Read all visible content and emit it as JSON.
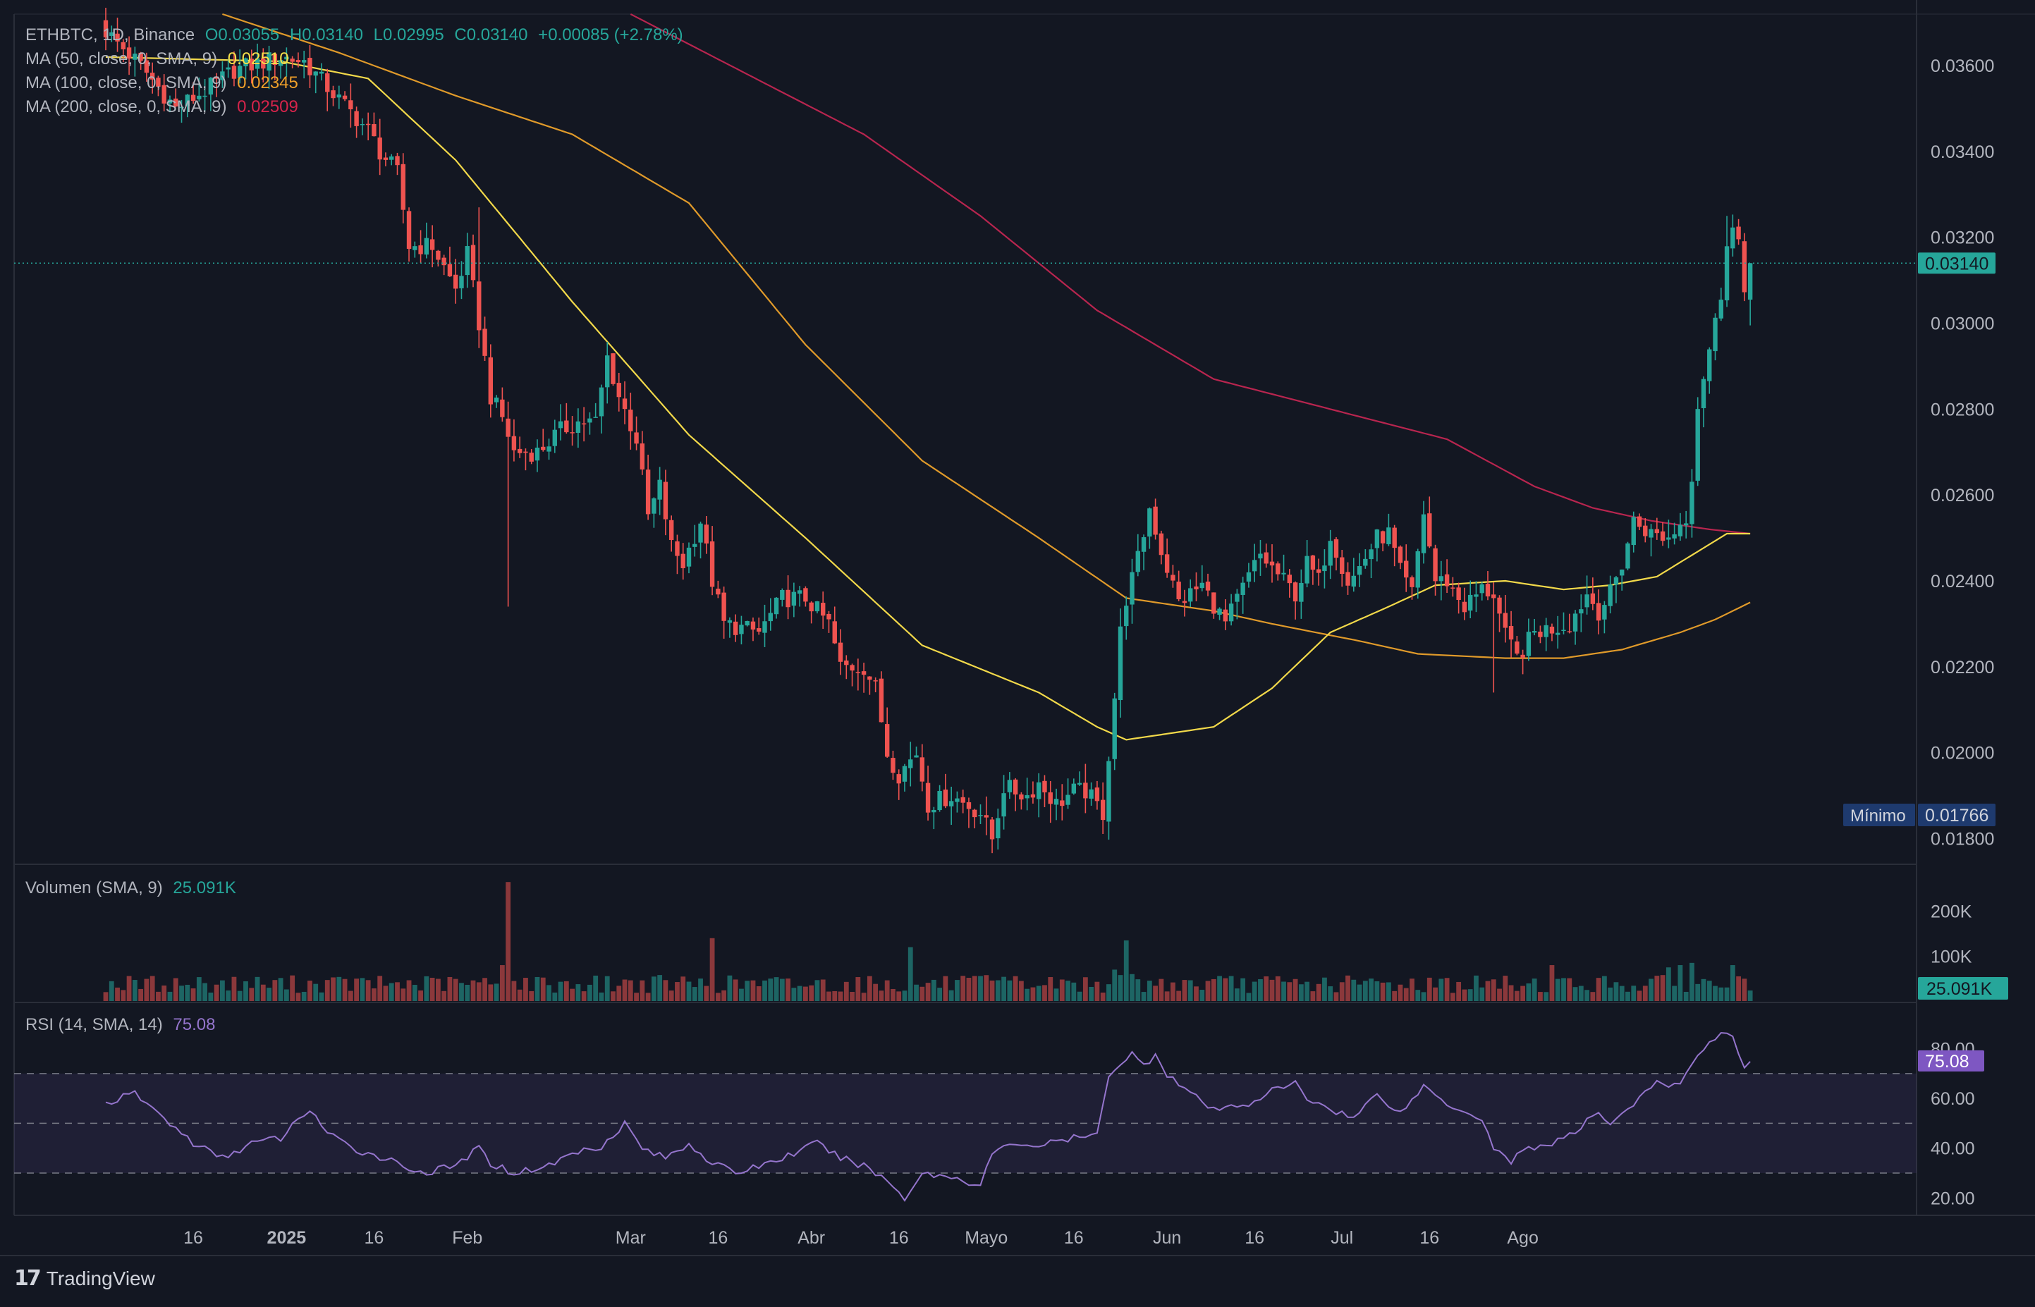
{
  "header": {
    "symbol": "ETHBTC, 1D, Binance",
    "ohlc": {
      "open": "O0.03055",
      "high": "H0.03140",
      "low": "L0.02995",
      "close": "C0.03140",
      "change": "+0.00085 (+2.78%)"
    }
  },
  "indicators": {
    "ma50": {
      "label": "MA (50, close, 0, SMA, 9)",
      "value": "0.02510",
      "color": "#f5e04a"
    },
    "ma100": {
      "label": "MA (100, close, 0, SMA, 9)",
      "value": "0.02345",
      "color": "#f0a02a"
    },
    "ma200": {
      "label": "MA (200, close, 0, SMA, 9)",
      "value": "0.02509",
      "color": "#d6244b"
    },
    "volume": {
      "label": "Volumen (SMA, 9)",
      "value": "25.091K"
    },
    "rsi": {
      "label": "RSI (14, SMA, 14)",
      "value": "75.08",
      "color": "#7e57c2"
    }
  },
  "price_axis": {
    "ticks": [
      "0.03600",
      "0.03400",
      "0.03200",
      "0.03000",
      "0.02800",
      "0.02600",
      "0.02400",
      "0.02200",
      "0.02000",
      "0.01800"
    ],
    "last_price": "0.03140",
    "min_label": "Mínimo",
    "min_value": "0.01766"
  },
  "volume_axis": {
    "ticks": [
      "200K",
      "100K"
    ],
    "last": "25.091K"
  },
  "rsi_axis": {
    "ticks": [
      "80.00",
      "60.00",
      "40.00",
      "20.00"
    ],
    "last": "75.08"
  },
  "time_axis": {
    "labels": [
      {
        "text": "16",
        "day": 15,
        "bold": false
      },
      {
        "text": "2025",
        "day": 31,
        "bold": true
      },
      {
        "text": "16",
        "day": 46,
        "bold": false
      },
      {
        "text": "Feb",
        "day": 62,
        "bold": false
      },
      {
        "text": "Mar",
        "day": 90,
        "bold": false
      },
      {
        "text": "16",
        "day": 105,
        "bold": false
      },
      {
        "text": "Abr",
        "day": 121,
        "bold": false
      },
      {
        "text": "16",
        "day": 136,
        "bold": false
      },
      {
        "text": "Mayo",
        "day": 151,
        "bold": false
      },
      {
        "text": "16",
        "day": 166,
        "bold": false
      },
      {
        "text": "Jun",
        "day": 182,
        "bold": false
      },
      {
        "text": "16",
        "day": 197,
        "bold": false
      },
      {
        "text": "Jul",
        "day": 212,
        "bold": false
      },
      {
        "text": "16",
        "day": 227,
        "bold": false
      },
      {
        "text": "Ago",
        "day": 243,
        "bold": false
      }
    ]
  },
  "brand": {
    "name": "TradingView",
    "logo_icon": "tradingview-logo-icon"
  },
  "colors": {
    "up": "#26a69a",
    "down": "#ef5350",
    "background": "#131722"
  },
  "chart_data": {
    "type": "candlestick",
    "symbol": "ETHBTC",
    "interval": "1D",
    "start_date": "2024-12-01",
    "ylim": [
      0.0174,
      0.0372
    ],
    "close_anchors": [
      [
        0,
        0.0368
      ],
      [
        6,
        0.036
      ],
      [
        12,
        0.035
      ],
      [
        18,
        0.0355
      ],
      [
        22,
        0.0359
      ],
      [
        30,
        0.0362
      ],
      [
        34,
        0.0361
      ],
      [
        40,
        0.0352
      ],
      [
        45,
        0.0345
      ],
      [
        47,
        0.034
      ],
      [
        50,
        0.0335
      ],
      [
        52,
        0.0318
      ],
      [
        56,
        0.0318
      ],
      [
        60,
        0.0308
      ],
      [
        62,
        0.0316
      ],
      [
        64,
        0.03
      ],
      [
        66,
        0.0283
      ],
      [
        68,
        0.0278
      ],
      [
        70,
        0.027
      ],
      [
        74,
        0.027
      ],
      [
        78,
        0.0275
      ],
      [
        81,
        0.0277
      ],
      [
        84,
        0.0277
      ],
      [
        86,
        0.0292
      ],
      [
        88,
        0.0283
      ],
      [
        91,
        0.0273
      ],
      [
        93,
        0.0255
      ],
      [
        95,
        0.0262
      ],
      [
        97,
        0.0248
      ],
      [
        99,
        0.0244
      ],
      [
        102,
        0.0254
      ],
      [
        104,
        0.024
      ],
      [
        106,
        0.023
      ],
      [
        112,
        0.0228
      ],
      [
        116,
        0.0236
      ],
      [
        120,
        0.0236
      ],
      [
        124,
        0.023
      ],
      [
        126,
        0.022
      ],
      [
        130,
        0.022
      ],
      [
        132,
        0.0215
      ],
      [
        134,
        0.02
      ],
      [
        136,
        0.0195
      ],
      [
        139,
        0.02
      ],
      [
        141,
        0.0188
      ],
      [
        145,
        0.019
      ],
      [
        150,
        0.0186
      ],
      [
        152,
        0.018
      ],
      [
        154,
        0.0192
      ],
      [
        158,
        0.019
      ],
      [
        160,
        0.0193
      ],
      [
        163,
        0.0188
      ],
      [
        166,
        0.0191
      ],
      [
        168,
        0.0191
      ],
      [
        171,
        0.0186
      ],
      [
        173,
        0.0213
      ],
      [
        174,
        0.0228
      ],
      [
        175,
        0.0236
      ],
      [
        177,
        0.0245
      ],
      [
        179,
        0.0257
      ],
      [
        181,
        0.0247
      ],
      [
        184,
        0.0235
      ],
      [
        188,
        0.0239
      ],
      [
        192,
        0.023
      ],
      [
        196,
        0.0241
      ],
      [
        198,
        0.0246
      ],
      [
        202,
        0.024
      ],
      [
        204,
        0.0237
      ],
      [
        206,
        0.0244
      ],
      [
        208,
        0.024
      ],
      [
        210,
        0.0251
      ],
      [
        213,
        0.024
      ],
      [
        214,
        0.0241
      ],
      [
        218,
        0.025
      ],
      [
        220,
        0.0251
      ],
      [
        222,
        0.0242
      ],
      [
        224,
        0.0237
      ],
      [
        226,
        0.0256
      ],
      [
        228,
        0.024
      ],
      [
        230,
        0.024
      ],
      [
        233,
        0.0234
      ],
      [
        236,
        0.0238
      ],
      [
        238,
        0.0237
      ],
      [
        240,
        0.0227
      ],
      [
        242,
        0.0222
      ],
      [
        245,
        0.0228
      ],
      [
        248,
        0.0229
      ],
      [
        251,
        0.023
      ],
      [
        254,
        0.0237
      ],
      [
        256,
        0.0233
      ],
      [
        258,
        0.0237
      ],
      [
        260,
        0.0244
      ],
      [
        262,
        0.0254
      ],
      [
        265,
        0.0251
      ],
      [
        268,
        0.025
      ],
      [
        271,
        0.0255
      ],
      [
        272,
        0.0265
      ],
      [
        273,
        0.0281
      ],
      [
        274,
        0.0288
      ],
      [
        275,
        0.0294
      ],
      [
        276,
        0.03
      ],
      [
        277,
        0.0307
      ],
      [
        278,
        0.032
      ],
      [
        279,
        0.0322
      ],
      [
        280,
        0.0319
      ],
      [
        281,
        0.0305
      ],
      [
        282,
        0.0314
      ]
    ],
    "ma50_anchors": [
      [
        0,
        0.0362
      ],
      [
        30,
        0.0361
      ],
      [
        45,
        0.0357
      ],
      [
        60,
        0.0338
      ],
      [
        80,
        0.0305
      ],
      [
        100,
        0.0274
      ],
      [
        120,
        0.025
      ],
      [
        140,
        0.0225
      ],
      [
        160,
        0.0214
      ],
      [
        170,
        0.0206
      ],
      [
        175,
        0.0203
      ],
      [
        190,
        0.0206
      ],
      [
        200,
        0.0215
      ],
      [
        210,
        0.0228
      ],
      [
        220,
        0.0234
      ],
      [
        228,
        0.0239
      ],
      [
        240,
        0.024
      ],
      [
        250,
        0.0238
      ],
      [
        258,
        0.0239
      ],
      [
        266,
        0.0241
      ],
      [
        272,
        0.0246
      ],
      [
        278,
        0.0251
      ],
      [
        282,
        0.0251
      ]
    ],
    "ma100_anchors": [
      [
        20,
        0.0372
      ],
      [
        40,
        0.0363
      ],
      [
        60,
        0.0353
      ],
      [
        80,
        0.0344
      ],
      [
        100,
        0.0328
      ],
      [
        120,
        0.0295
      ],
      [
        140,
        0.0268
      ],
      [
        160,
        0.025
      ],
      [
        175,
        0.0236
      ],
      [
        190,
        0.0233
      ],
      [
        200,
        0.023
      ],
      [
        215,
        0.0226
      ],
      [
        225,
        0.0223
      ],
      [
        240,
        0.0222
      ],
      [
        250,
        0.0222
      ],
      [
        260,
        0.0224
      ],
      [
        270,
        0.0228
      ],
      [
        276,
        0.0231
      ],
      [
        282,
        0.0235
      ]
    ],
    "ma200_anchors": [
      [
        90,
        0.0372
      ],
      [
        110,
        0.0358
      ],
      [
        130,
        0.0344
      ],
      [
        150,
        0.0325
      ],
      [
        170,
        0.0303
      ],
      [
        190,
        0.0287
      ],
      [
        210,
        0.028
      ],
      [
        230,
        0.0273
      ],
      [
        245,
        0.0262
      ],
      [
        255,
        0.0257
      ],
      [
        265,
        0.0254
      ],
      [
        275,
        0.0252
      ],
      [
        282,
        0.0251
      ]
    ],
    "volume": {
      "unit": "K",
      "ylim": [
        0,
        270
      ],
      "spike_days": {
        "69": 265,
        "68": 80,
        "138": 120,
        "175": 135,
        "104": 140,
        "176": 60,
        "173": 70,
        "248": 80,
        "268": 75,
        "270": 80,
        "272": 85,
        "279": 80
      }
    },
    "rsi": {
      "ylim": [
        13,
        98
      ],
      "bands": [
        30,
        50,
        70
      ],
      "anchors": [
        [
          0,
          58
        ],
        [
          5,
          62
        ],
        [
          10,
          52
        ],
        [
          15,
          42
        ],
        [
          20,
          36
        ],
        [
          25,
          42
        ],
        [
          30,
          44
        ],
        [
          35,
          56
        ],
        [
          38,
          46
        ],
        [
          42,
          40
        ],
        [
          48,
          36
        ],
        [
          52,
          32
        ],
        [
          55,
          30
        ],
        [
          60,
          33
        ],
        [
          64,
          40
        ],
        [
          66,
          34
        ],
        [
          70,
          30
        ],
        [
          76,
          33
        ],
        [
          80,
          38
        ],
        [
          85,
          41
        ],
        [
          89,
          50
        ],
        [
          92,
          40
        ],
        [
          96,
          36
        ],
        [
          100,
          42
        ],
        [
          104,
          34
        ],
        [
          108,
          30
        ],
        [
          112,
          33
        ],
        [
          116,
          36
        ],
        [
          122,
          42
        ],
        [
          126,
          36
        ],
        [
          130,
          33
        ],
        [
          134,
          27
        ],
        [
          137,
          20
        ],
        [
          140,
          30
        ],
        [
          146,
          28
        ],
        [
          150,
          25
        ],
        [
          152,
          38
        ],
        [
          156,
          42
        ],
        [
          160,
          41
        ],
        [
          166,
          44
        ],
        [
          170,
          45
        ],
        [
          172,
          70
        ],
        [
          176,
          78
        ],
        [
          178,
          73
        ],
        [
          180,
          78
        ],
        [
          182,
          70
        ],
        [
          186,
          62
        ],
        [
          190,
          55
        ],
        [
          196,
          58
        ],
        [
          200,
          63
        ],
        [
          204,
          66
        ],
        [
          206,
          60
        ],
        [
          210,
          56
        ],
        [
          214,
          52
        ],
        [
          218,
          62
        ],
        [
          222,
          54
        ],
        [
          226,
          65
        ],
        [
          230,
          58
        ],
        [
          233,
          55
        ],
        [
          236,
          52
        ],
        [
          238,
          40
        ],
        [
          241,
          35
        ],
        [
          244,
          40
        ],
        [
          248,
          42
        ],
        [
          252,
          46
        ],
        [
          256,
          55
        ],
        [
          258,
          50
        ],
        [
          262,
          58
        ],
        [
          266,
          66
        ],
        [
          270,
          65
        ],
        [
          273,
          78
        ],
        [
          276,
          85
        ],
        [
          279,
          86
        ],
        [
          281,
          72
        ],
        [
          282,
          75
        ]
      ]
    }
  }
}
